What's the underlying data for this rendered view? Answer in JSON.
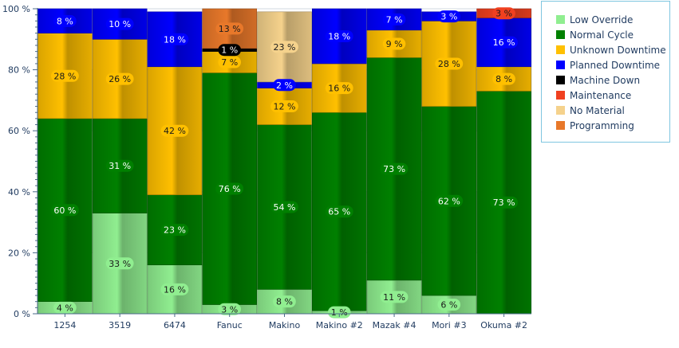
{
  "chart_data": {
    "type": "bar",
    "stacked": true,
    "categories": [
      "1254",
      "3519",
      "6474",
      "Fanuc",
      "Makino",
      "Makino #2",
      "Mazak #4",
      "Mori #3",
      "Okuma #2"
    ],
    "y_ticks": [
      "0 %",
      "20 %",
      "40 %",
      "60 %",
      "80 %",
      "100 %"
    ],
    "ylim": [
      0,
      100
    ],
    "grid": true,
    "legend_position": "top-right",
    "series": [
      {
        "name": "Low Override",
        "color": "#90ee90",
        "label_text": "#1a1a1a",
        "values": [
          4,
          33,
          16,
          3,
          8,
          1,
          11,
          6,
          0
        ],
        "labels": [
          "4 %",
          "33 %",
          "16 %",
          "3 %",
          "8 %",
          "1 %",
          "11 %",
          "6 %",
          ""
        ]
      },
      {
        "name": "Normal Cycle",
        "color": "#008000",
        "label_text": "#ffffff",
        "values": [
          60,
          31,
          23,
          76,
          54,
          65,
          73,
          62,
          73
        ],
        "labels": [
          "60 %",
          "31 %",
          "23 %",
          "76 %",
          "54 %",
          "65 %",
          "73 %",
          "62 %",
          "73 %"
        ]
      },
      {
        "name": "Unknown Downtime",
        "color": "#ffc000",
        "label_text": "#1a1a1a",
        "values": [
          28,
          26,
          42,
          7,
          12,
          16,
          9,
          28,
          8
        ],
        "labels": [
          "28 %",
          "26 %",
          "42 %",
          "7 %",
          "12 %",
          "16 %",
          "9 %",
          "28 %",
          "8 %"
        ]
      },
      {
        "name": "Planned Downtime",
        "color": "#0000ff",
        "label_text": "#ffffff",
        "values": [
          8,
          10,
          18,
          0,
          2,
          18,
          7,
          3,
          16
        ],
        "labels": [
          "8 %",
          "10 %",
          "18 %",
          "",
          "2 %",
          "18 %",
          "7 %",
          "3 %",
          "16 %"
        ]
      },
      {
        "name": "Machine Down",
        "color": "#000000",
        "label_text": "#ffffff",
        "values": [
          0,
          0,
          0,
          1,
          0,
          0,
          0,
          0,
          0
        ],
        "labels": [
          "",
          "",
          "",
          "1 %",
          "",
          "",
          "",
          "",
          ""
        ]
      },
      {
        "name": "Maintenance",
        "color": "#f04020",
        "label_text": "#1a1a1a",
        "values": [
          0,
          0,
          0,
          0,
          0,
          0,
          0,
          0,
          3
        ],
        "labels": [
          "",
          "",
          "",
          "",
          "",
          "",
          "",
          "",
          "3 %"
        ]
      },
      {
        "name": "No Material",
        "color": "#f5d28c",
        "label_text": "#1a1a1a",
        "values": [
          0,
          0,
          0,
          0,
          23,
          0,
          0,
          0,
          0
        ],
        "labels": [
          "",
          "",
          "",
          "",
          "23 %",
          "",
          "",
          "",
          ""
        ]
      },
      {
        "name": "Programming",
        "color": "#e8782a",
        "label_text": "#1a1a1a",
        "values": [
          0,
          0,
          0,
          13,
          0,
          0,
          0,
          0,
          0
        ],
        "labels": [
          "",
          "",
          "",
          "13 %",
          "",
          "",
          "",
          "",
          ""
        ]
      }
    ]
  },
  "colors": {
    "axis": "#4a6a8a",
    "grid": "#d0d8e0",
    "band": "#eef1f6",
    "tick_text": "#1f3a5f"
  }
}
